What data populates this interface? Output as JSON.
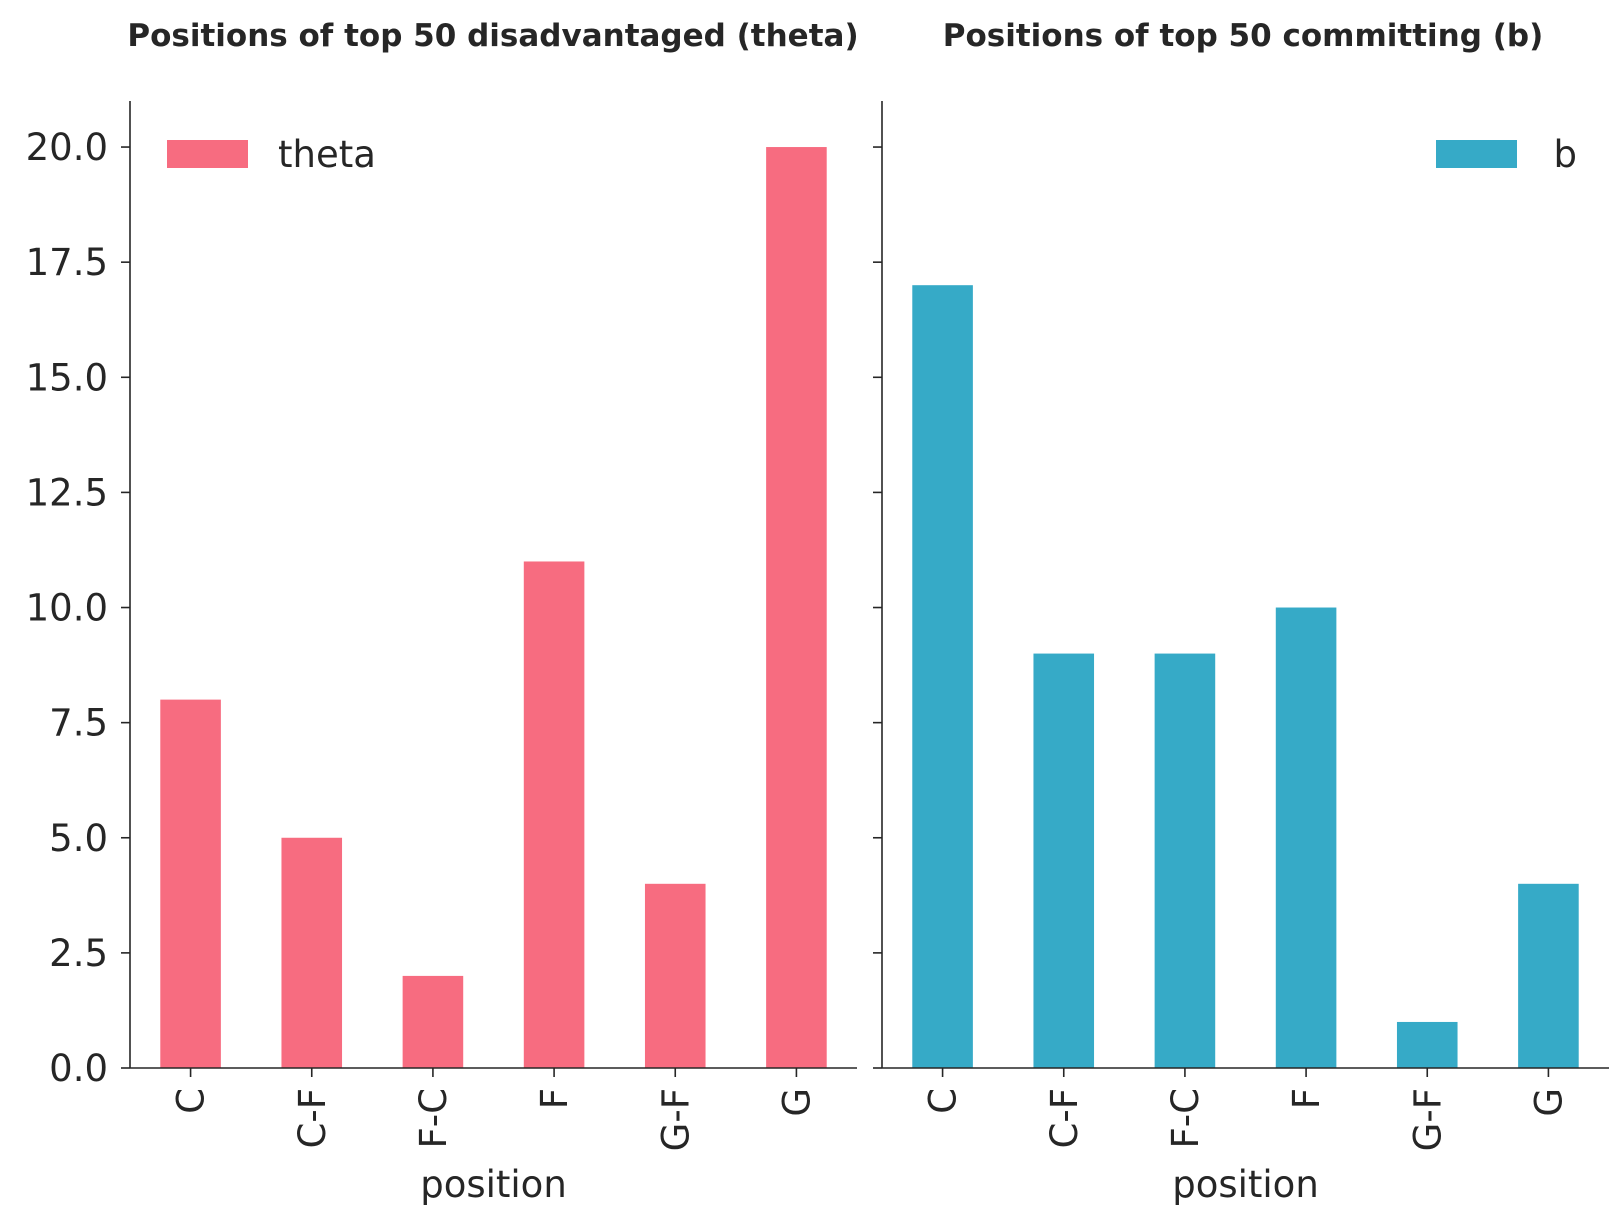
{
  "chart_data": [
    {
      "type": "bar",
      "title": "Positions of top 50 disadvantaged (theta)",
      "xlabel": "position",
      "ylabel": "",
      "categories": [
        "C",
        "C-F",
        "F-C",
        "F",
        "G-F",
        "G"
      ],
      "series": [
        {
          "name": "theta",
          "values": [
            8,
            5,
            2,
            11,
            4,
            20
          ],
          "color": "#f76c80"
        }
      ],
      "ylim": [
        0,
        21
      ],
      "yticks": [
        "0.0",
        "2.5",
        "5.0",
        "7.5",
        "10.0",
        "12.5",
        "15.0",
        "17.5",
        "20.0"
      ],
      "legend": "top-left",
      "grid": false
    },
    {
      "type": "bar",
      "title": "Positions of top 50 committing (b)",
      "xlabel": "position",
      "ylabel": "",
      "categories": [
        "C",
        "C-F",
        "F-C",
        "F",
        "G-F",
        "G"
      ],
      "series": [
        {
          "name": "b",
          "values": [
            17,
            9,
            9,
            10,
            1,
            4
          ],
          "color": "#36aac7"
        }
      ],
      "ylim": [
        0,
        21
      ],
      "yticks": [
        "0.0",
        "2.5",
        "5.0",
        "7.5",
        "10.0",
        "12.5",
        "15.0",
        "17.5",
        "20.0"
      ],
      "legend": "top-right",
      "grid": false
    }
  ]
}
